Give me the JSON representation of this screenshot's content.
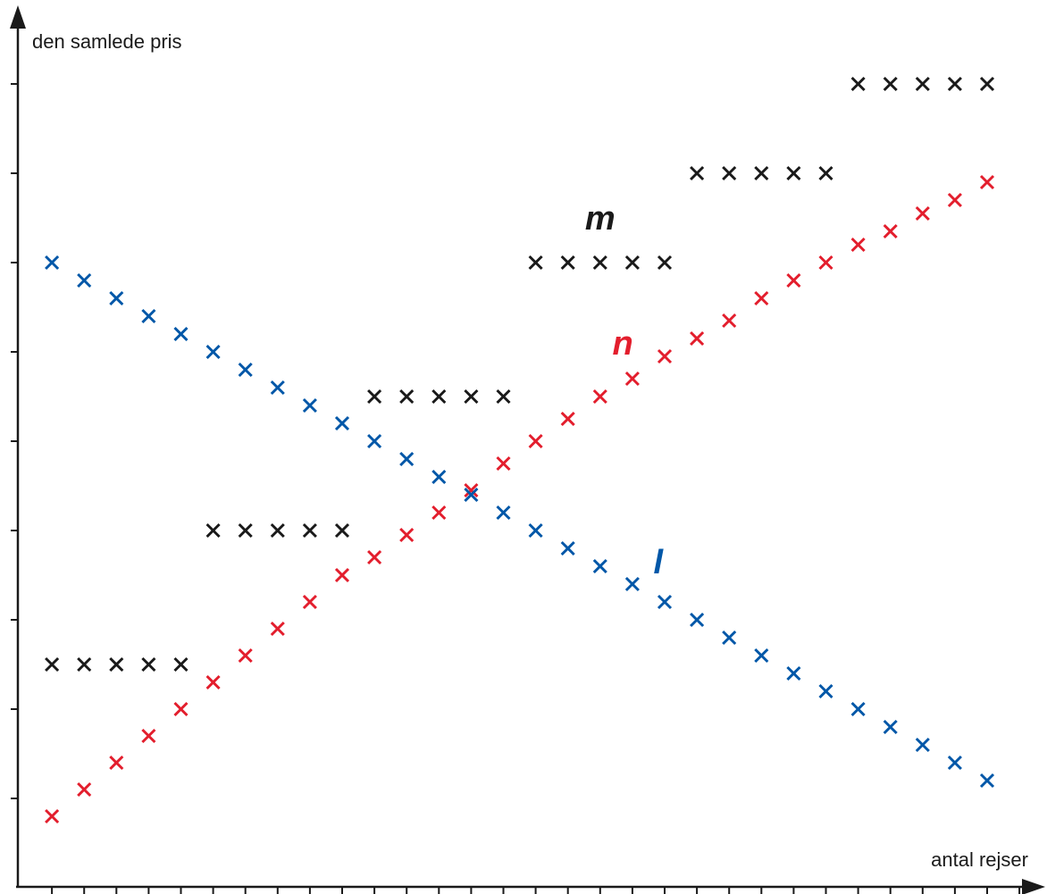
{
  "chart_data": {
    "type": "scatter",
    "ylabel": "den samlede pris",
    "xlabel": "antal rejser",
    "xlim": [
      0,
      31
    ],
    "ylim": [
      0,
      10
    ],
    "grid": false,
    "legend": "none",
    "series": [
      {
        "name": "m",
        "color": "#1a1a1a",
        "marker": "x",
        "points": [
          [
            1,
            2.5
          ],
          [
            2,
            2.5
          ],
          [
            3,
            2.5
          ],
          [
            4,
            2.5
          ],
          [
            5,
            2.5
          ],
          [
            6,
            4
          ],
          [
            7,
            4
          ],
          [
            8,
            4
          ],
          [
            9,
            4
          ],
          [
            10,
            4
          ],
          [
            11,
            5.5
          ],
          [
            12,
            5.5
          ],
          [
            13,
            5.5
          ],
          [
            14,
            5.5
          ],
          [
            15,
            5.5
          ],
          [
            16,
            7
          ],
          [
            17,
            7
          ],
          [
            18,
            7
          ],
          [
            19,
            7
          ],
          [
            20,
            7
          ],
          [
            21,
            8
          ],
          [
            22,
            8
          ],
          [
            23,
            8
          ],
          [
            24,
            8
          ],
          [
            25,
            8
          ],
          [
            26,
            9
          ],
          [
            27,
            9
          ],
          [
            28,
            9
          ],
          [
            29,
            9
          ],
          [
            30,
            9
          ]
        ]
      },
      {
        "name": "n",
        "color": "#e31e2d",
        "marker": "x",
        "points": [
          [
            1,
            0.8
          ],
          [
            2,
            1.1
          ],
          [
            3,
            1.4
          ],
          [
            4,
            1.7
          ],
          [
            5,
            2.0
          ],
          [
            6,
            2.3
          ],
          [
            7,
            2.6
          ],
          [
            8,
            2.9
          ],
          [
            9,
            3.2
          ],
          [
            10,
            3.5
          ],
          [
            11,
            3.7
          ],
          [
            12,
            3.95
          ],
          [
            13,
            4.2
          ],
          [
            14,
            4.45
          ],
          [
            15,
            4.75
          ],
          [
            16,
            5.0
          ],
          [
            17,
            5.25
          ],
          [
            18,
            5.5
          ],
          [
            19,
            5.7
          ],
          [
            20,
            5.95
          ],
          [
            21,
            6.15
          ],
          [
            22,
            6.35
          ],
          [
            23,
            6.6
          ],
          [
            24,
            6.8
          ],
          [
            25,
            7.0
          ],
          [
            26,
            7.2
          ],
          [
            27,
            7.35
          ],
          [
            28,
            7.55
          ],
          [
            29,
            7.7
          ],
          [
            30,
            7.9
          ]
        ]
      },
      {
        "name": "l",
        "color": "#0057a8",
        "marker": "x",
        "points": [
          [
            1,
            7.0
          ],
          [
            2,
            6.8
          ],
          [
            3,
            6.6
          ],
          [
            4,
            6.4
          ],
          [
            5,
            6.2
          ],
          [
            6,
            6.0
          ],
          [
            7,
            5.8
          ],
          [
            8,
            5.6
          ],
          [
            9,
            5.4
          ],
          [
            10,
            5.2
          ],
          [
            11,
            5.0
          ],
          [
            12,
            4.8
          ],
          [
            13,
            4.6
          ],
          [
            14,
            4.4
          ],
          [
            15,
            4.2
          ],
          [
            16,
            4.0
          ],
          [
            17,
            3.8
          ],
          [
            18,
            3.6
          ],
          [
            19,
            3.4
          ],
          [
            20,
            3.2
          ],
          [
            21,
            3.0
          ],
          [
            22,
            2.8
          ],
          [
            23,
            2.6
          ],
          [
            24,
            2.4
          ],
          [
            25,
            2.2
          ],
          [
            26,
            2.0
          ],
          [
            27,
            1.8
          ],
          [
            28,
            1.6
          ],
          [
            29,
            1.4
          ],
          [
            30,
            1.2
          ]
        ]
      }
    ],
    "series_labels": [
      {
        "text": "m",
        "color": "#1a1a1a",
        "x": 18,
        "y": 7.5
      },
      {
        "text": "n",
        "color": "#e31e2d",
        "x": 18.7,
        "y": 6.1
      },
      {
        "text": "l",
        "color": "#0057a8",
        "x": 19.8,
        "y": 3.65
      }
    ]
  }
}
